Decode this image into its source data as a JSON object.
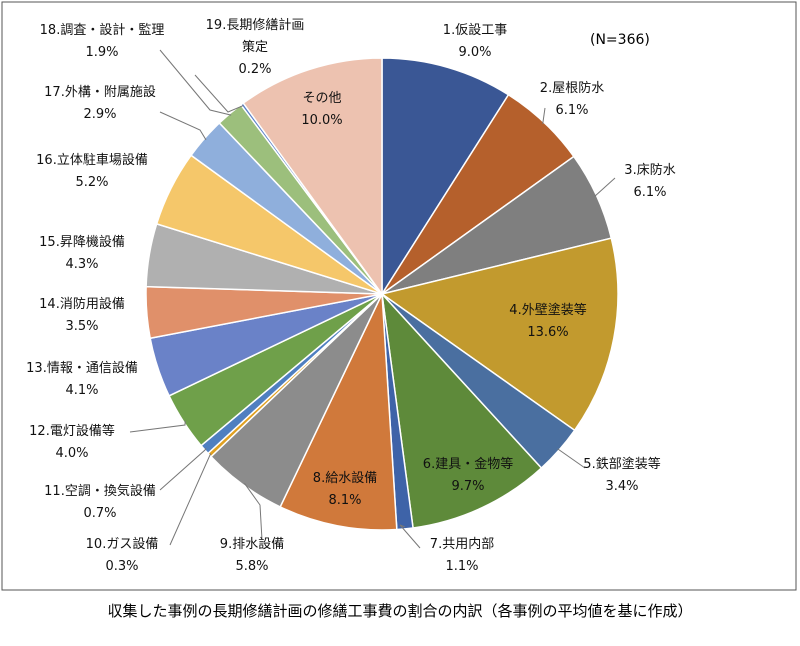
{
  "chart_data": {
    "type": "pie",
    "annotation": "(N=366)",
    "caption": "収集した事例の長期修繕計画の修繕工事費の割合の内訳（各事例の平均値を基に作成）",
    "categories": [
      "1.仮設工事",
      "2.屋根防水",
      "3.床防水",
      "4.外壁塗装等",
      "5.鉄部塗装等",
      "6.建具・金物等",
      "7.共用内部",
      "8.給水設備",
      "9.排水設備",
      "10.ガス設備",
      "11.空調・換気設備",
      "12.電灯設備等",
      "13.情報・通信設備",
      "14.消防用設備",
      "15.昇降機設備",
      "16.立体駐車場設備",
      "17.外構・附属施設",
      "18.調査・設計・監理",
      "19.長期修繕計画\n策定",
      "その他"
    ],
    "values": [
      9.0,
      6.1,
      6.1,
      13.6,
      3.4,
      9.7,
      1.1,
      8.1,
      5.8,
      0.3,
      0.7,
      4.0,
      4.1,
      3.5,
      4.3,
      5.2,
      2.9,
      1.9,
      0.2,
      10.0
    ],
    "value_labels": [
      "9.0%",
      "6.1%",
      "6.1%",
      "13.6%",
      "3.4%",
      "9.7%",
      "1.1%",
      "8.1%",
      "5.8%",
      "0.3%",
      "0.7%",
      "4.0%",
      "4.1%",
      "3.5%",
      "4.3%",
      "5.2%",
      "2.9%",
      "1.9%",
      "0.2%",
      "10.0%"
    ],
    "colors": [
      "#3a5795",
      "#b5602c",
      "#7f7f7f",
      "#c29a2e",
      "#4a6fa0",
      "#5e8a3a",
      "#3e63a8",
      "#d0793b",
      "#8c8c8c",
      "#e0a020",
      "#4f7fc0",
      "#6fa04a",
      "#6a82c8",
      "#e0906a",
      "#b0b0b0",
      "#f5c76a",
      "#8fafdc",
      "#9cbf7c",
      "#5a80c8",
      "#edc2b0"
    ]
  }
}
